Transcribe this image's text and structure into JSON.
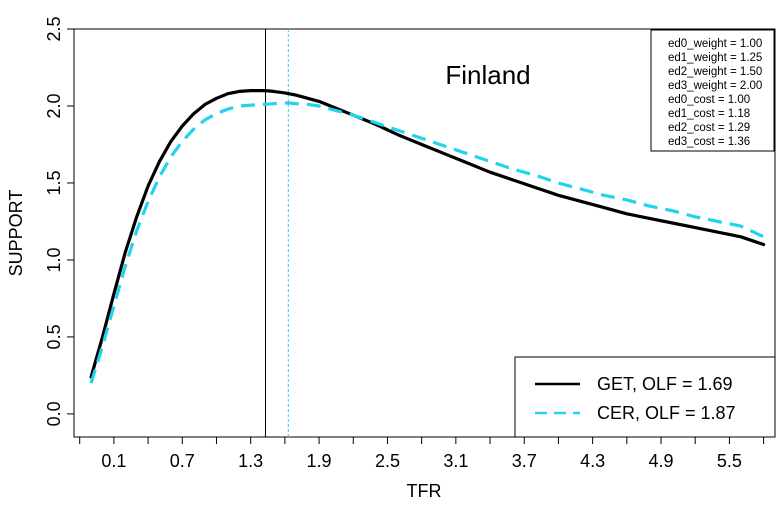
{
  "chart_data": {
    "type": "line",
    "xlabel": "TFR",
    "ylabel": "SUPPORT",
    "xlim": [
      -0.25,
      5.9
    ],
    "ylim": [
      -0.15,
      2.5
    ],
    "x_ticks": [
      0.1,
      0.7,
      1.3,
      1.9,
      2.5,
      3.1,
      3.7,
      4.3,
      4.9,
      5.5
    ],
    "x_tick_labels": [
      "0.1",
      "0.7",
      "1.3",
      "1.9",
      "2.5",
      "3.1",
      "3.7",
      "4.3",
      "4.9",
      "5.5"
    ],
    "y_ticks": [
      0.0,
      0.5,
      1.0,
      1.5,
      2.0,
      2.5
    ],
    "y_tick_labels": [
      "0.0",
      "0.5",
      "1.0",
      "1.5",
      "2.0",
      "2.5"
    ],
    "grid": false,
    "annotation": "Finland",
    "parameters": [
      "ed0_weight = 1.00",
      "ed1_weight = 1.25",
      "ed2_weight = 1.50",
      "ed3_weight = 2.00",
      "ed0_cost = 1.00",
      "ed1_cost = 1.18",
      "ed2_cost = 1.29",
      "ed3_cost = 1.36"
    ],
    "legend_position": "bottom-right",
    "vertical_lines": [
      {
        "x": 1.43,
        "color": "#000000",
        "style": "solid"
      },
      {
        "x": 1.63,
        "color": "#22d3ee",
        "style": "dashed"
      }
    ],
    "series": [
      {
        "name": "GET, OLF = 1.69",
        "color": "#000000",
        "style": "solid",
        "x": [
          -0.1,
          0.0,
          0.1,
          0.2,
          0.3,
          0.4,
          0.5,
          0.6,
          0.7,
          0.8,
          0.9,
          1.0,
          1.1,
          1.2,
          1.3,
          1.4,
          1.43,
          1.5,
          1.6,
          1.7,
          1.8,
          1.9,
          2.0,
          2.2,
          2.4,
          2.6,
          2.8,
          3.0,
          3.2,
          3.4,
          3.6,
          3.8,
          4.0,
          4.2,
          4.4,
          4.6,
          4.8,
          5.0,
          5.2,
          5.4,
          5.6,
          5.8
        ],
        "y": [
          0.24,
          0.5,
          0.78,
          1.05,
          1.28,
          1.48,
          1.64,
          1.77,
          1.87,
          1.95,
          2.01,
          2.05,
          2.08,
          2.095,
          2.1,
          2.1,
          2.1,
          2.095,
          2.085,
          2.07,
          2.05,
          2.03,
          2.0,
          1.94,
          1.88,
          1.81,
          1.75,
          1.69,
          1.63,
          1.57,
          1.52,
          1.47,
          1.42,
          1.38,
          1.34,
          1.3,
          1.27,
          1.24,
          1.21,
          1.18,
          1.15,
          1.1
        ]
      },
      {
        "name": "CER, OLF = 1.87",
        "color": "#22d3ee",
        "style": "dashed",
        "x": [
          -0.1,
          0.0,
          0.1,
          0.2,
          0.3,
          0.4,
          0.5,
          0.6,
          0.7,
          0.8,
          0.9,
          1.0,
          1.1,
          1.2,
          1.3,
          1.4,
          1.5,
          1.63,
          1.7,
          1.8,
          1.9,
          2.0,
          2.2,
          2.4,
          2.6,
          2.8,
          3.0,
          3.2,
          3.4,
          3.6,
          3.8,
          4.0,
          4.2,
          4.4,
          4.6,
          4.8,
          5.0,
          5.2,
          5.4,
          5.6,
          5.8
        ],
        "y": [
          0.2,
          0.44,
          0.7,
          0.96,
          1.19,
          1.38,
          1.54,
          1.67,
          1.77,
          1.85,
          1.91,
          1.95,
          1.98,
          2.0,
          2.005,
          2.01,
          2.015,
          2.02,
          2.015,
          2.01,
          2.0,
          1.98,
          1.94,
          1.89,
          1.84,
          1.79,
          1.74,
          1.69,
          1.64,
          1.59,
          1.55,
          1.5,
          1.46,
          1.42,
          1.39,
          1.35,
          1.32,
          1.28,
          1.25,
          1.22,
          1.15
        ]
      }
    ]
  }
}
